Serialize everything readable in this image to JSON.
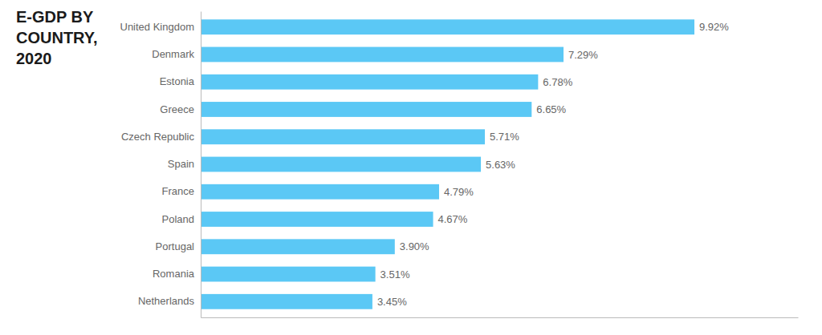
{
  "chart_data": {
    "type": "bar",
    "orientation": "horizontal",
    "title": "E-GDP BY\nCOUNTRY,\n2020",
    "categories": [
      "United Kingdom",
      "Denmark",
      "Estonia",
      "Greece",
      "Czech Republic",
      "Spain",
      "France",
      "Poland",
      "Portugal",
      "Romania",
      "Netherlands"
    ],
    "values": [
      9.92,
      7.29,
      6.78,
      6.65,
      5.71,
      5.63,
      4.79,
      4.67,
      3.9,
      3.51,
      3.45
    ],
    "value_labels": [
      "9.92%",
      "7.29%",
      "6.78%",
      "6.65%",
      "5.71%",
      "5.63%",
      "4.79%",
      "4.67%",
      "3.90%",
      "3.51%",
      "3.45%"
    ],
    "color": "#5bc8f5",
    "xlim": [
      0,
      12.0
    ],
    "data_labels": true,
    "tick_labels": "y",
    "grid": false
  }
}
